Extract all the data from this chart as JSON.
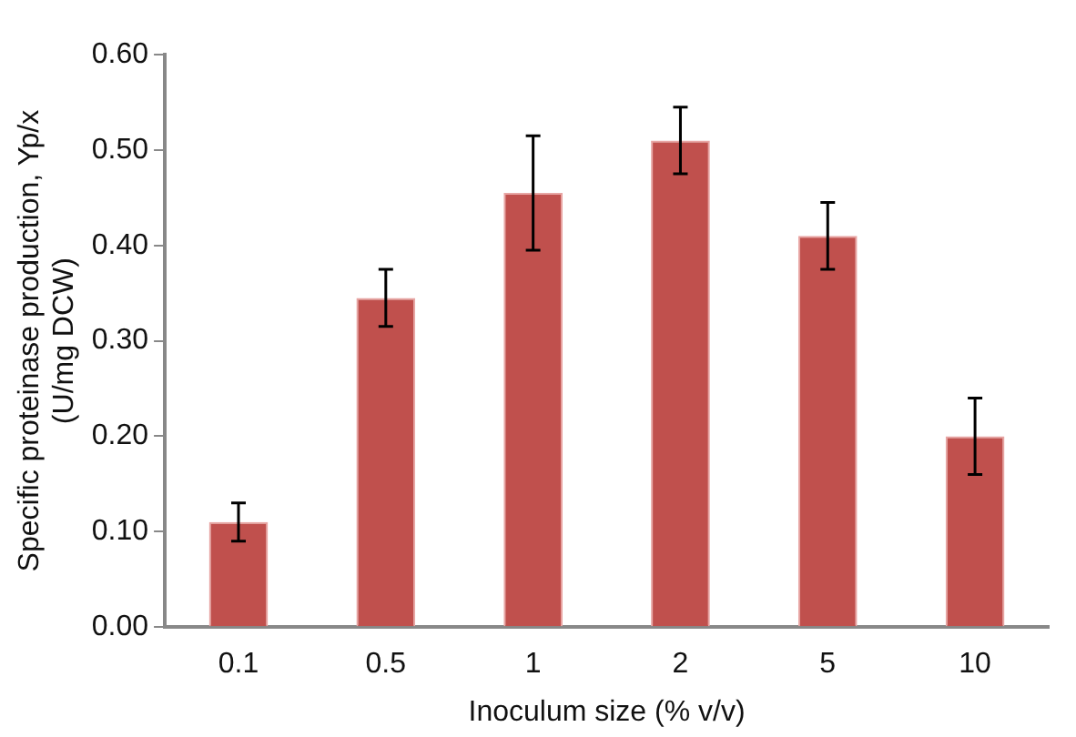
{
  "chart_data": {
    "type": "bar",
    "xlabel": "Inoculum size (% v/v)",
    "ylabel": "Specific proteinase production, Yp/x\n(U/mg DCW)",
    "categories": [
      "0.1",
      "0.5",
      "1",
      "2",
      "5",
      "10"
    ],
    "values": [
      0.11,
      0.345,
      0.455,
      0.51,
      0.41,
      0.2
    ],
    "errors": [
      0.02,
      0.03,
      0.06,
      0.035,
      0.035,
      0.04
    ],
    "color": "#c0504d",
    "ylim": [
      0,
      0.6
    ],
    "yticks": [
      {
        "value": 0,
        "label": "0.00"
      },
      {
        "value": 0.1,
        "label": "0.10"
      },
      {
        "value": 0.2,
        "label": "0.20"
      },
      {
        "value": 0.3,
        "label": "0.30"
      },
      {
        "value": 0.4,
        "label": "0.40"
      },
      {
        "value": 0.5,
        "label": "0.50"
      },
      {
        "value": 0.6,
        "label": "0.60"
      }
    ],
    "grid": false,
    "legend": false
  }
}
